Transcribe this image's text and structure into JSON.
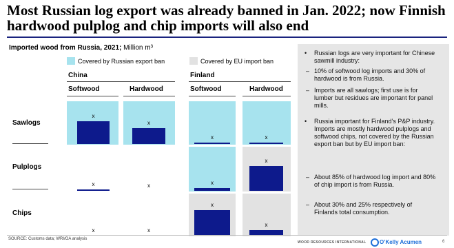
{
  "title": "Most Russian log export was already banned in Jan. 2022;  now Finnish hardwood pulplog and chip imports will also end",
  "subtitle": {
    "main": "Imported wood from Russia, 2021;",
    "unit": "Million m³"
  },
  "legend": {
    "russian_ban": "Covered by Russian export ban",
    "eu_ban": "Covered by EU import ban"
  },
  "colors": {
    "bar": "#0d1a8c",
    "russian_ban": "#a7e3ee",
    "eu_ban": "#e2e2e2",
    "title_rule": "#1a237e"
  },
  "chart_data": {
    "type": "bar",
    "title": "Imported wood from Russia, 2021; Million m³",
    "groups": [
      "China",
      "Finland"
    ],
    "columns": [
      "Softwood",
      "Hardwood"
    ],
    "rows": [
      "Sawlogs",
      "Pulplogs",
      "Chips"
    ],
    "mark": "x",
    "ylim": [
      0,
      1
    ],
    "cells": [
      {
        "group": "China",
        "column": "Softwood",
        "row": "Sawlogs",
        "value": 0.72,
        "coverage": "russian"
      },
      {
        "group": "China",
        "column": "Hardwood",
        "row": "Sawlogs",
        "value": 0.5,
        "coverage": "russian"
      },
      {
        "group": "China",
        "column": "Softwood",
        "row": "Pulplogs",
        "value": 0.02,
        "coverage": "none"
      },
      {
        "group": "China",
        "column": "Hardwood",
        "row": "Pulplogs",
        "value": 0.0,
        "coverage": "none"
      },
      {
        "group": "China",
        "column": "Softwood",
        "row": "Chips",
        "value": 0.0,
        "coverage": "none"
      },
      {
        "group": "China",
        "column": "Hardwood",
        "row": "Chips",
        "value": 0.0,
        "coverage": "none"
      },
      {
        "group": "Finland",
        "column": "Softwood",
        "row": "Sawlogs",
        "value": 0.02,
        "coverage": "russian"
      },
      {
        "group": "Finland",
        "column": "Hardwood",
        "row": "Sawlogs",
        "value": 0.05,
        "coverage": "russian"
      },
      {
        "group": "Finland",
        "column": "Softwood",
        "row": "Pulplogs",
        "value": 0.08,
        "coverage": "russian"
      },
      {
        "group": "Finland",
        "column": "Hardwood",
        "row": "Pulplogs",
        "value": 0.78,
        "coverage": "eu"
      },
      {
        "group": "Finland",
        "column": "Softwood",
        "row": "Chips",
        "value": 0.8,
        "coverage": "eu"
      },
      {
        "group": "Finland",
        "column": "Hardwood",
        "row": "Chips",
        "value": 0.18,
        "coverage": "eu"
      }
    ]
  },
  "notes": [
    {
      "text": "Russian logs are very important for Chinese sawmill industry:",
      "sub": [
        "10% of softwood log imports and 30% of hardwood is from Russia.",
        "Imports are all sawlogs; first use is for lumber but residues are important for panel mills."
      ]
    },
    {
      "text": "Russia important for Finland’s P&P industry. Imports are mostly hardwood pulplogs  and softwood chips, not covered by the Russian export ban but by EU import ban:",
      "sub": [
        "About 85% of hardwood log import and 80% of chip import is from Russia.",
        "About 30% and 25% respectively of Finlands total consumption."
      ]
    }
  ],
  "footer": {
    "source": "SOURCE: Customs data; WRI/OA analysis",
    "logo_left": "WOOD RESOURCES INTERNATIONAL",
    "logo_right": "O’Kelly Acumen",
    "page": "6"
  }
}
